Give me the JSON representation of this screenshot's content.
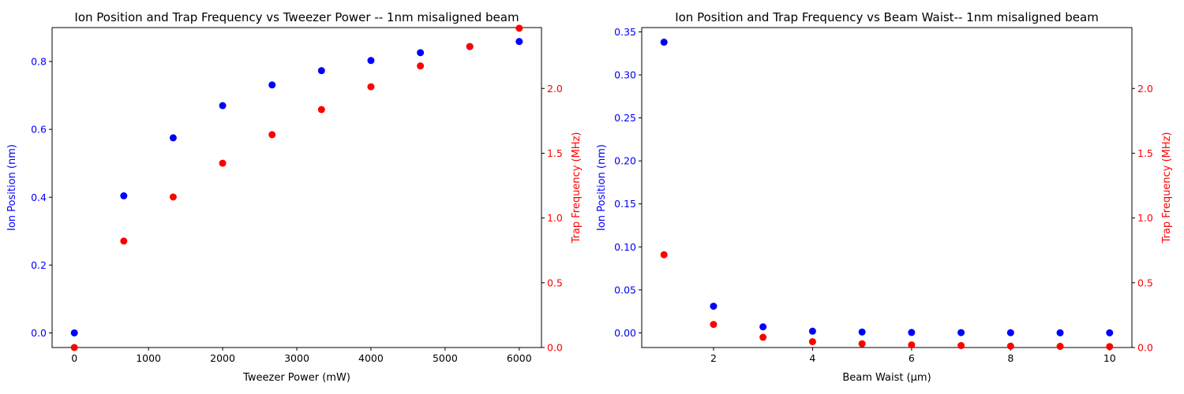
{
  "chart_data": [
    {
      "type": "scatter",
      "title": "Ion Position and Trap Frequency vs Tweezer Power -- 1nm misaligned beam",
      "xlabel": "Tweezer Power (mW)",
      "ylabel": "Ion Position (nm)",
      "y2label": "Trap Frequency (MHz)",
      "xlim": [
        -300,
        6300
      ],
      "ylim": [
        -0.043,
        0.9
      ],
      "y2lim": [
        0,
        2.47
      ],
      "xticks": [
        0,
        1000,
        2000,
        3000,
        4000,
        5000,
        6000
      ],
      "yticks": [
        0.0,
        0.2,
        0.4,
        0.6,
        0.8
      ],
      "y2ticks": [
        0.0,
        0.5,
        1.0,
        1.5,
        2.0
      ],
      "xtick_labels": [
        "0",
        "1000",
        "2000",
        "3000",
        "4000",
        "5000",
        "6000"
      ],
      "ytick_labels": [
        "0.0",
        "0.2",
        "0.4",
        "0.6",
        "0.8"
      ],
      "y2tick_labels": [
        "0.0",
        "0.5",
        "1.0",
        "1.5",
        "2.0"
      ],
      "x": [
        0,
        667,
        1333,
        2000,
        2667,
        3333,
        4000,
        4667,
        5333,
        6000
      ],
      "series": [
        {
          "axis": "left",
          "color": "#0000ff",
          "values": [
            0.0,
            0.404,
            0.575,
            0.67,
            0.731,
            0.773,
            0.803,
            0.826,
            0.844,
            0.859
          ]
        },
        {
          "axis": "right",
          "color": "#ff0000",
          "values": [
            0.0,
            0.822,
            1.162,
            1.423,
            1.643,
            1.837,
            2.013,
            2.174,
            2.324,
            2.465
          ]
        }
      ],
      "grid": false
    },
    {
      "type": "scatter",
      "title": "Ion Position and Trap Frequency vs Beam Waist-- 1nm misaligned beam",
      "xlabel": "Beam Waist (µm)",
      "ylabel": "Ion Position (nm)",
      "y2label": "Trap Frequency (MHz)",
      "xlim": [
        0.55,
        10.45
      ],
      "ylim": [
        -0.017,
        0.355
      ],
      "y2lim": [
        0,
        2.47
      ],
      "xticks": [
        2,
        4,
        6,
        8,
        10
      ],
      "yticks": [
        0.0,
        0.05,
        0.1,
        0.15,
        0.2,
        0.25,
        0.3,
        0.35
      ],
      "y2ticks": [
        0.0,
        0.5,
        1.0,
        1.5,
        2.0
      ],
      "xtick_labels": [
        "2",
        "4",
        "6",
        "8",
        "10"
      ],
      "ytick_labels": [
        "0.00",
        "0.05",
        "0.10",
        "0.15",
        "0.20",
        "0.25",
        "0.30",
        "0.35"
      ],
      "y2tick_labels": [
        "0.0",
        "0.5",
        "1.0",
        "1.5",
        "2.0"
      ],
      "x": [
        1,
        2,
        3,
        4,
        5,
        6,
        7,
        8,
        9,
        10
      ],
      "series": [
        {
          "axis": "left",
          "color": "#0000ff",
          "values": [
            0.338,
            0.031,
            0.007,
            0.002,
            0.001,
            0.0005,
            0.0003,
            0.0002,
            0.0001,
            0.0001
          ]
        },
        {
          "axis": "right",
          "color": "#ff0000",
          "values": [
            0.716,
            0.178,
            0.079,
            0.045,
            0.029,
            0.02,
            0.015,
            0.011,
            0.009,
            0.007
          ]
        }
      ],
      "grid": false
    }
  ]
}
